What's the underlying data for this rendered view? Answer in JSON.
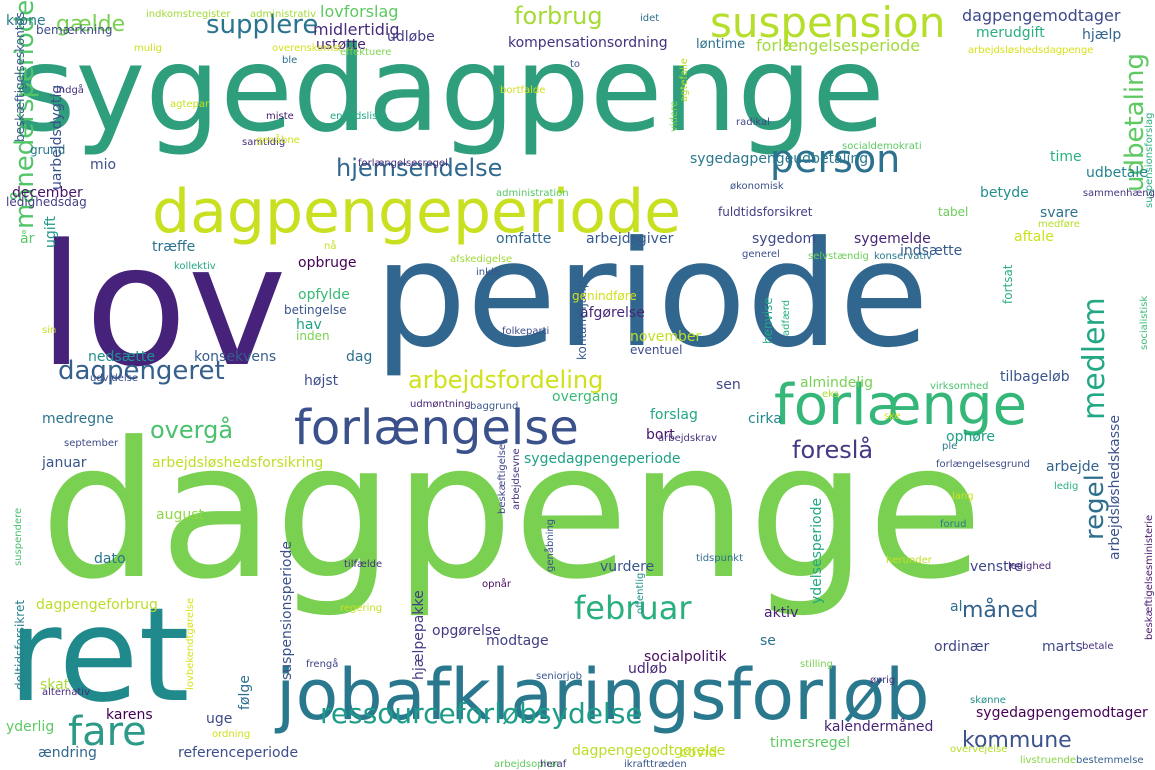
{
  "cloud": {
    "words": [
      {
        "text": "sygedagpenge",
        "color": "#2e9e7c"
      },
      {
        "text": "lov",
        "color": "#46227a"
      },
      {
        "text": "periode",
        "color": "#31668e"
      },
      {
        "text": "dagpenge",
        "color": "#7ad151"
      },
      {
        "text": "ret",
        "color": "#1f898b"
      },
      {
        "text": "jobafklaringsforløb",
        "color": "#2a788e"
      },
      {
        "text": "dagpengeperiode",
        "color": "#c8e020"
      },
      {
        "text": "forlænge",
        "color": "#35b779"
      },
      {
        "text": "forlængelse",
        "color": "#3b518b"
      },
      {
        "text": "suspension",
        "color": "#b5de2b"
      },
      {
        "text": "person",
        "color": "#2c718e"
      },
      {
        "text": "fare",
        "color": "#2c9a87"
      },
      {
        "text": "ressourceforløbsydelse",
        "color": "#1e9c89"
      },
      {
        "text": "februar",
        "color": "#2ab07f"
      },
      {
        "text": "medlem",
        "color": "#22a884"
      },
      {
        "text": "dagpengeret",
        "color": "#355f8d"
      },
      {
        "text": "hjemsendelse",
        "color": "#31688e"
      },
      {
        "text": "arbejdsfordeling",
        "color": "#d0e11c"
      },
      {
        "text": "supplere",
        "color": "#2b748e"
      },
      {
        "text": "forbrug",
        "color": "#a5db36"
      },
      {
        "text": "gælde",
        "color": "#7ad151"
      },
      {
        "text": "udbetaling",
        "color": "#5ec962"
      },
      {
        "text": "månedersperiode",
        "color": "#52c569"
      },
      {
        "text": "overgå",
        "color": "#4ac16d"
      },
      {
        "text": "foreslå",
        "color": "#443983"
      },
      {
        "text": "regel",
        "color": "#2e6f8e"
      },
      {
        "text": "måned",
        "color": "#33638d"
      },
      {
        "text": "kommune",
        "color": "#3b528b"
      },
      {
        "text": "dagpengemodtager",
        "color": "#3e4989"
      },
      {
        "text": "kompensationsordning",
        "color": "#46307e"
      },
      {
        "text": "forlængelsesperiode",
        "color": "#a0da39"
      },
      {
        "text": "lovforslag",
        "color": "#5ec962"
      },
      {
        "text": "midlertidig",
        "color": "#472d7b"
      },
      {
        "text": "udløbe",
        "color": "#433e85"
      },
      {
        "text": "ustøtte",
        "color": "#481f71"
      },
      {
        "text": "løntime",
        "color": "#2c728e"
      },
      {
        "text": "hjælp",
        "color": "#32658e"
      },
      {
        "text": "merudgift",
        "color": "#28ae80"
      },
      {
        "text": "sygedagpengeudbetaling",
        "color": "#2a788e"
      },
      {
        "text": "økonomisk",
        "color": "#3b528b"
      },
      {
        "text": "udbetale",
        "color": "#25858e"
      },
      {
        "text": "time",
        "color": "#2ab07f"
      },
      {
        "text": "betyde",
        "color": "#21918c"
      },
      {
        "text": "fuldtidsforsikret",
        "color": "#433e85"
      },
      {
        "text": "tabel",
        "color": "#6ccd5a"
      },
      {
        "text": "svare",
        "color": "#2d718e"
      },
      {
        "text": "sygedom",
        "color": "#3e4989"
      },
      {
        "text": "sygemelde",
        "color": "#482576"
      },
      {
        "text": "indsætte",
        "color": "#375a8c"
      },
      {
        "text": "aftale",
        "color": "#cde11d"
      },
      {
        "text": "arbejdsgiver",
        "color": "#38598c"
      },
      {
        "text": "omfatte",
        "color": "#31688e"
      },
      {
        "text": "træffe",
        "color": "#2c738e"
      },
      {
        "text": "opbruge",
        "color": "#440154"
      },
      {
        "text": "opfylde",
        "color": "#3aba76"
      },
      {
        "text": "betingelse",
        "color": "#3a548c"
      },
      {
        "text": "hav",
        "color": "#1fa187"
      },
      {
        "text": "afgørelse",
        "color": "#482677"
      },
      {
        "text": "kontanthjælp",
        "color": "#375b8d"
      },
      {
        "text": "inden",
        "color": "#7ad151"
      },
      {
        "text": "november",
        "color": "#c2df23"
      },
      {
        "text": "eventuel",
        "color": "#3e4c8a"
      },
      {
        "text": "konsekvens",
        "color": "#355e8d"
      },
      {
        "text": "nedsætte",
        "color": "#20928c"
      },
      {
        "text": "dag",
        "color": "#2d708e"
      },
      {
        "text": "højst",
        "color": "#3c4f8a"
      },
      {
        "text": "sen",
        "color": "#3e4a89"
      },
      {
        "text": "almindelig",
        "color": "#77d153"
      },
      {
        "text": "tilbageløb",
        "color": "#39568c"
      },
      {
        "text": "overgang",
        "color": "#3aba76"
      },
      {
        "text": "forslag",
        "color": "#22a884"
      },
      {
        "text": "cirka",
        "color": "#23898e"
      },
      {
        "text": "bort",
        "color": "#481467"
      },
      {
        "text": "ophøre",
        "color": "#1f9f88"
      },
      {
        "text": "arbejde",
        "color": "#33638d"
      },
      {
        "text": "medregne",
        "color": "#2c738e"
      },
      {
        "text": "januar",
        "color": "#39568c"
      },
      {
        "text": "arbejdsløshedsforsikring",
        "color": "#bddf26"
      },
      {
        "text": "sygedagpengeperiode",
        "color": "#1fa187"
      },
      {
        "text": "arbejdsløshedskasse",
        "color": "#3b528b"
      },
      {
        "text": "sygedagpengemodtager",
        "color": "#440154"
      },
      {
        "text": "kalendermåned",
        "color": "#482475"
      },
      {
        "text": "timersregel",
        "color": "#5cc863"
      },
      {
        "text": "dagpengegodtgørelse",
        "color": "#bade28"
      },
      {
        "text": "referenceperiode",
        "color": "#3d4e8a"
      },
      {
        "text": "ændring",
        "color": "#31688e"
      },
      {
        "text": "covid",
        "color": "#c5e021"
      },
      {
        "text": "arbejdsophør",
        "color": "#63cb5f"
      },
      {
        "text": "heraf",
        "color": "#463480"
      },
      {
        "text": "ikrafttræden",
        "color": "#39568c"
      },
      {
        "text": "dagpengeforbrug",
        "color": "#bade28"
      },
      {
        "text": "skat",
        "color": "#a8db34"
      },
      {
        "text": "yderlig",
        "color": "#5ec962"
      },
      {
        "text": "karens",
        "color": "#440154"
      },
      {
        "text": "uge",
        "color": "#3e4989"
      },
      {
        "text": "følge",
        "color": "#2e6e8e"
      },
      {
        "text": "udløb",
        "color": "#482878"
      },
      {
        "text": "socialpolitik",
        "color": "#470d60"
      },
      {
        "text": "marts",
        "color": "#3e4989"
      },
      {
        "text": "ordinær",
        "color": "#404588"
      },
      {
        "text": "se",
        "color": "#2c718e"
      },
      {
        "text": "aktiv",
        "color": "#482475"
      },
      {
        "text": "modtage",
        "color": "#424086"
      },
      {
        "text": "opgørelse",
        "color": "#443a83"
      },
      {
        "text": "hjælpepakke",
        "color": "#433d84"
      },
      {
        "text": "suspensionsperiode",
        "color": "#3b518b"
      },
      {
        "text": "ydelsesperiode",
        "color": "#22a884"
      },
      {
        "text": "venstre",
        "color": "#3f4788"
      },
      {
        "text": "vurdere",
        "color": "#3a548c"
      },
      {
        "text": "dato",
        "color": "#2c728e"
      },
      {
        "text": "august",
        "color": "#8fd744"
      },
      {
        "text": "al",
        "color": "#2d708e"
      },
      {
        "text": "december",
        "color": "#481668"
      },
      {
        "text": "ledighedsdag",
        "color": "#433e85"
      },
      {
        "text": "mio",
        "color": "#3b518b"
      },
      {
        "text": "grund",
        "color": "#2a778e"
      },
      {
        "text": "år",
        "color": "#5ac864"
      },
      {
        "text": "uarbejdsdygtig",
        "color": "#3b528b"
      },
      {
        "text": "ugift",
        "color": "#1f998a"
      },
      {
        "text": "krone",
        "color": "#2a788e"
      },
      {
        "text": "bemærkning",
        "color": "#3e4a89"
      },
      {
        "text": "beskæftigelseskontos",
        "color": "#38588c"
      },
      {
        "text": "deltidsforsikret",
        "color": "#27808e"
      },
      {
        "text": "indkomstregister",
        "color": "#a2da37"
      },
      {
        "text": "administrativ",
        "color": "#a0da39"
      },
      {
        "text": "overenskomst",
        "color": "#d2e21b"
      },
      {
        "text": "effektuere",
        "color": "#7fd34e"
      },
      {
        "text": "arbejdsløshedsdagpenge",
        "color": "#d8e219"
      },
      {
        "text": "suspensionsforslag",
        "color": "#2ab07f"
      },
      {
        "text": "radikal",
        "color": "#3f4889"
      },
      {
        "text": "socialdemokrati",
        "color": "#5ec962"
      },
      {
        "text": "sammenhæng",
        "color": "#46337e"
      },
      {
        "text": "medføre",
        "color": "#b8de29"
      },
      {
        "text": "socialistisk",
        "color": "#3aba76"
      },
      {
        "text": "konservativ",
        "color": "#2a788e"
      },
      {
        "text": "generel",
        "color": "#3d4e8a"
      },
      {
        "text": "selvstændig",
        "color": "#6ece58"
      },
      {
        "text": "folkeparti",
        "color": "#3e4c8a"
      },
      {
        "text": "administration",
        "color": "#55c667"
      },
      {
        "text": "forlængelsesregel",
        "color": "#472c7a"
      },
      {
        "text": "afskedigelse",
        "color": "#a0da39"
      },
      {
        "text": "kollektiv",
        "color": "#22a884"
      },
      {
        "text": "genindføre",
        "color": "#d0e11c"
      },
      {
        "text": "henvise",
        "color": "#22a884"
      },
      {
        "text": "adfærd",
        "color": "#2ab07f"
      },
      {
        "text": "fortsat",
        "color": "#2db27d"
      },
      {
        "text": "virksomhed",
        "color": "#4ac16d"
      },
      {
        "text": "udmøntning",
        "color": "#482576"
      },
      {
        "text": "baggrund",
        "color": "#38598c"
      },
      {
        "text": "arbejdskrav",
        "color": "#46337e"
      },
      {
        "text": "forlængelsesgrund",
        "color": "#3e4c8a"
      },
      {
        "text": "ledig",
        "color": "#2ab07f"
      },
      {
        "text": "lang",
        "color": "#cae11f"
      },
      {
        "text": "forud",
        "color": "#2a788e"
      },
      {
        "text": "beskæftigelsesministerie",
        "color": "#481a6c"
      },
      {
        "text": "ledighed",
        "color": "#482475"
      },
      {
        "text": "stilling",
        "color": "#7ad151"
      },
      {
        "text": "betale",
        "color": "#472f7d"
      },
      {
        "text": "skønne",
        "color": "#21918c"
      },
      {
        "text": "bestemmelse",
        "color": "#355f8d"
      },
      {
        "text": "livstruende",
        "color": "#8bd646"
      },
      {
        "text": "overvejelse",
        "color": "#b5de2b"
      },
      {
        "text": "øvrig",
        "color": "#46327e"
      },
      {
        "text": "seniorjob",
        "color": "#38598c"
      },
      {
        "text": "offentlig",
        "color": "#21918c"
      },
      {
        "text": "opnår",
        "color": "#470d60"
      },
      {
        "text": "tidspunkt",
        "color": "#2e6f8e"
      },
      {
        "text": "genåbning",
        "color": "#3b518b"
      },
      {
        "text": "beskæftigelse",
        "color": "#404688"
      },
      {
        "text": "arbejdsevne",
        "color": "#46327e"
      },
      {
        "text": "herunder",
        "color": "#c0df25"
      },
      {
        "text": "tilfælde",
        "color": "#46327e"
      },
      {
        "text": "regering",
        "color": "#c5e021"
      },
      {
        "text": "frengå",
        "color": "#414487"
      },
      {
        "text": "ordning",
        "color": "#d0e11c"
      },
      {
        "text": "lovbekendtgørelse",
        "color": "#d8e219"
      },
      {
        "text": "alternativ",
        "color": "#472a7a"
      },
      {
        "text": "suspendere",
        "color": "#4ac16d"
      },
      {
        "text": "september",
        "color": "#3e4989"
      },
      {
        "text": "eks",
        "color": "#b0dd2f"
      },
      {
        "text": "ske",
        "color": "#d8e219"
      },
      {
        "text": "ple",
        "color": "#2a788e"
      },
      {
        "text": "udvidelse",
        "color": "#3c4f8a"
      },
      {
        "text": "sin",
        "color": "#c8e020"
      },
      {
        "text": "nå",
        "color": "#c8e020"
      },
      {
        "text": "inkle",
        "color": "#3b528b"
      },
      {
        "text": "samtidig",
        "color": "#472f7d"
      },
      {
        "text": "genåbne",
        "color": "#cde11d"
      },
      {
        "text": "agtepar",
        "color": "#c5e021"
      },
      {
        "text": "indgå",
        "color": "#46327e"
      },
      {
        "text": "miste",
        "color": "#481c6e"
      },
      {
        "text": "enhedsliste",
        "color": "#22a884"
      },
      {
        "text": "agtefalle",
        "color": "#b8de29"
      },
      {
        "text": "bortfalde",
        "color": "#d0e11c"
      },
      {
        "text": "videre",
        "color": "#7ad151"
      },
      {
        "text": "mulig",
        "color": "#cde11d"
      },
      {
        "text": "ble",
        "color": "#2e6f8e"
      },
      {
        "text": "to",
        "color": "#3b528b"
      },
      {
        "text": "idet",
        "color": "#2e6f8e"
      }
    ]
  }
}
